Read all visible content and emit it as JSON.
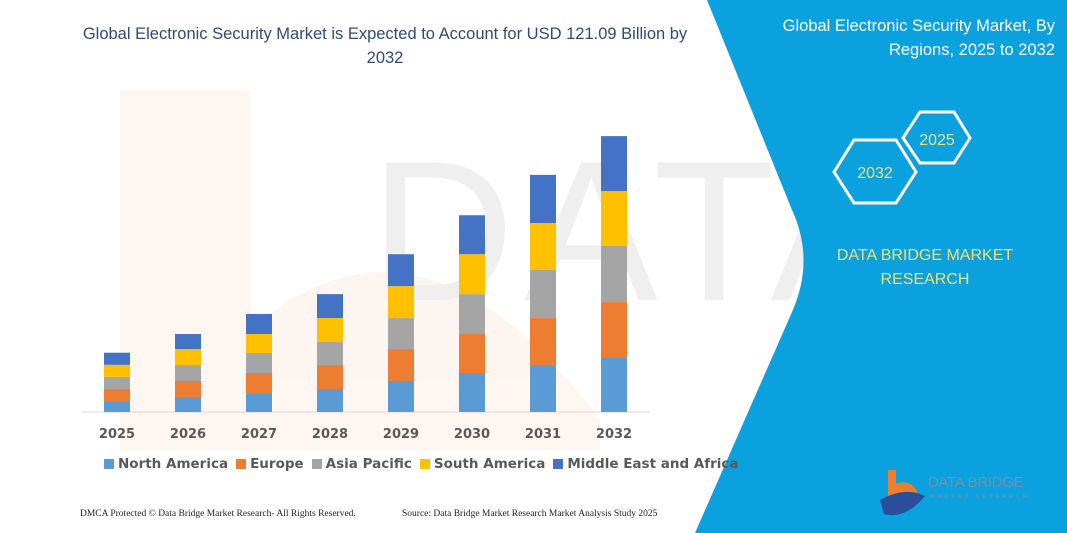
{
  "title": "Global Electronic Security Market is Expected to Account for USD 121.09 Billion by 2032",
  "side_panel": {
    "title": "Global Electronic Security Market, By Regions, 2025 to 2032",
    "hex_start": "2025",
    "hex_end": "2032",
    "brand_text": "DATA BRIDGE MARKET RESEARCH",
    "logo_text": "DATA BRIDGE",
    "logo_subtext": "MARKET RESEARCH",
    "color": "#0ba1df"
  },
  "footer": {
    "copyright": "DMCA Protected © Data Bridge Market Research-  All Rights Reserved.",
    "source": "Source: Data Bridge Market Research  Market Analysis Study 2025"
  },
  "chart_data": {
    "type": "bar",
    "stacked": true,
    "title": "Global Electronic Security Market is Expected to Account for USD 121.09 Billion by 2032",
    "xlabel": "",
    "ylabel": "",
    "y_axis_visible": false,
    "grid": false,
    "legend_placement": "bottom",
    "categories": [
      "2025",
      "2026",
      "2027",
      "2028",
      "2029",
      "2030",
      "2031",
      "2032"
    ],
    "series": [
      {
        "name": "North America",
        "color": "#5b9bd5",
        "values": [
          4.8,
          6.6,
          8.3,
          10.1,
          13.6,
          17.1,
          20.6,
          24.1
        ]
      },
      {
        "name": "Europe",
        "color": "#ed7d31",
        "values": [
          5.3,
          7.0,
          8.8,
          10.5,
          14.0,
          17.1,
          20.6,
          24.1
        ]
      },
      {
        "name": "Asia Pacific",
        "color": "#a5a5a5",
        "values": [
          5.3,
          7.0,
          8.8,
          10.1,
          13.6,
          17.5,
          21.1,
          24.6
        ]
      },
      {
        "name": "South America",
        "color": "#ffc000",
        "values": [
          5.3,
          7.0,
          8.3,
          10.5,
          14.0,
          17.5,
          20.6,
          24.1
        ]
      },
      {
        "name": "Middle East and Africa",
        "color": "#4472c4",
        "values": [
          5.3,
          6.6,
          8.8,
          10.5,
          14.0,
          17.1,
          21.1,
          24.1
        ]
      }
    ]
  }
}
